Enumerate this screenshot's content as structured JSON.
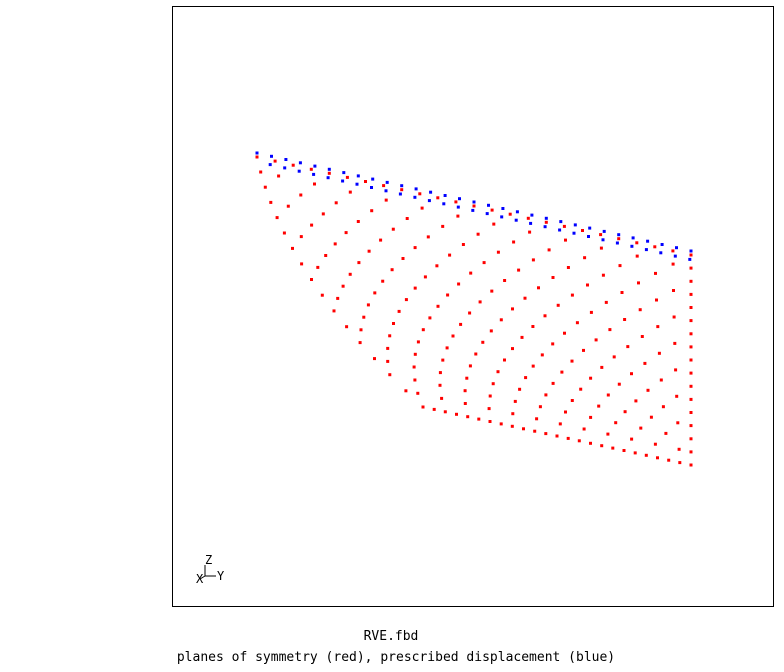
{
  "viewer": {
    "filename": "RVE.fbd",
    "caption": "planes of symmetry (red), prescribed displacement (blue)"
  },
  "triad": {
    "z_label": "Z",
    "y_label": "Y",
    "x_label": "X"
  },
  "colors": {
    "symmetry": "#ff0000",
    "displacement": "#0000ff",
    "background": "#ffffff",
    "frame": "#000000"
  },
  "legend": [
    {
      "name": "planes of symmetry",
      "color": "#ff0000"
    },
    {
      "name": "prescribed displacement",
      "color": "#0000ff"
    }
  ]
}
